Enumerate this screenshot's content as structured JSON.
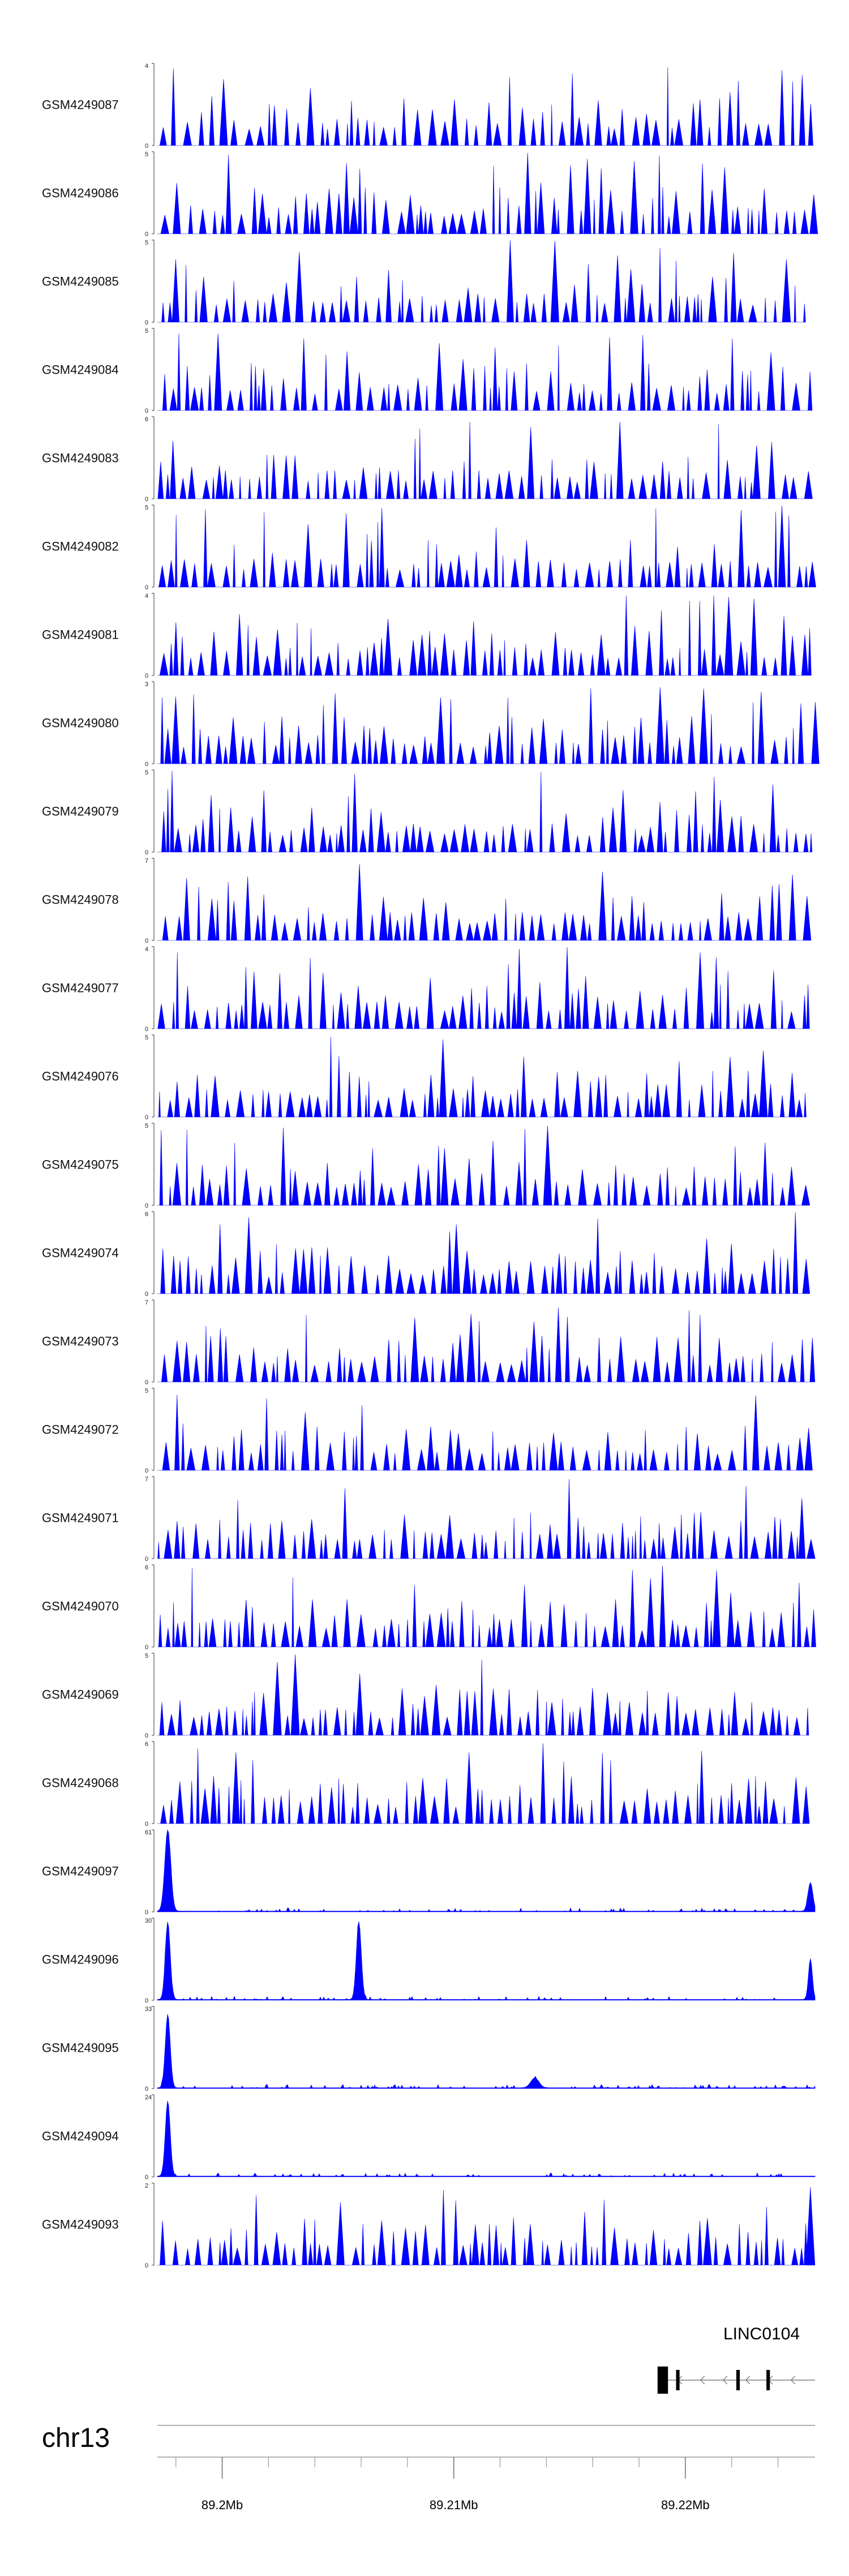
{
  "chart_data": {
    "type": "area",
    "color": "#0000ff",
    "chromosome": "chr13",
    "x_range_mb": [
      89.1972,
      89.2256
    ],
    "axis_ticks": [
      {
        "pos_mb": 89.2,
        "label": "89.2Mb"
      },
      {
        "pos_mb": 89.21,
        "label": "89.21Mb"
      },
      {
        "pos_mb": 89.22,
        "label": "89.22Mb"
      }
    ],
    "gene": {
      "name": "LINC0104",
      "start_mb": 89.2188,
      "end_mb": 89.2256,
      "strand": "-",
      "exons_mb": [
        [
          89.2188,
          89.21925
        ],
        [
          89.2196,
          89.21975
        ],
        [
          89.2222,
          89.22235
        ],
        [
          89.2235,
          89.22365
        ]
      ]
    },
    "tracks": [
      {
        "name": "GSM4249087",
        "ymax": "4",
        "style": "sparse",
        "seed": 87
      },
      {
        "name": "GSM4249086",
        "ymax": "5",
        "style": "sparse",
        "seed": 86
      },
      {
        "name": "GSM4249085",
        "ymax": "5",
        "style": "sparse",
        "seed": 85
      },
      {
        "name": "GSM4249084",
        "ymax": "5",
        "style": "sparse",
        "seed": 84
      },
      {
        "name": "GSM4249083",
        "ymax": "6",
        "style": "sparse",
        "seed": 83
      },
      {
        "name": "GSM4249082",
        "ymax": "5",
        "style": "sparse",
        "seed": 82
      },
      {
        "name": "GSM4249081",
        "ymax": "4",
        "style": "sparse",
        "seed": 81
      },
      {
        "name": "GSM4249080",
        "ymax": "3",
        "style": "sparse",
        "seed": 80
      },
      {
        "name": "GSM4249079",
        "ymax": "5",
        "style": "sparse",
        "seed": 79
      },
      {
        "name": "GSM4249078",
        "ymax": "7",
        "style": "sparse",
        "seed": 78
      },
      {
        "name": "GSM4249077",
        "ymax": "4",
        "style": "sparse",
        "seed": 77
      },
      {
        "name": "GSM4249076",
        "ymax": "5",
        "style": "sparse",
        "seed": 76
      },
      {
        "name": "GSM4249075",
        "ymax": "5",
        "style": "sparse",
        "seed": 75
      },
      {
        "name": "GSM4249074",
        "ymax": "6",
        "style": "sparse",
        "seed": 74
      },
      {
        "name": "GSM4249073",
        "ymax": "7",
        "style": "sparse",
        "seed": 73
      },
      {
        "name": "GSM4249072",
        "ymax": "5",
        "style": "sparse",
        "seed": 72
      },
      {
        "name": "GSM4249071",
        "ymax": "7",
        "style": "sparse",
        "seed": 71
      },
      {
        "name": "GSM4249070",
        "ymax": "6",
        "style": "sparse",
        "seed": 70
      },
      {
        "name": "GSM4249069",
        "ymax": "5",
        "style": "sparse",
        "seed": 69
      },
      {
        "name": "GSM4249068",
        "ymax": "6",
        "style": "sparse",
        "seed": 68
      },
      {
        "name": "GSM4249097",
        "ymax": "61",
        "style": "peaks",
        "seed": 97,
        "peaks": [
          {
            "x": 89.19765,
            "h": 1.0,
            "w": 0.00018
          },
          {
            "x": 89.2254,
            "h": 0.35,
            "w": 0.00015
          }
        ]
      },
      {
        "name": "GSM4249096",
        "ymax": "30",
        "style": "peaks",
        "seed": 96,
        "peaks": [
          {
            "x": 89.19765,
            "h": 0.95,
            "w": 0.00015
          },
          {
            "x": 89.2059,
            "h": 0.95,
            "w": 0.00015
          },
          {
            "x": 89.2254,
            "h": 0.5,
            "w": 0.00012
          }
        ]
      },
      {
        "name": "GSM4249095",
        "ymax": "33",
        "style": "peaks",
        "seed": 95,
        "peaks": [
          {
            "x": 89.19765,
            "h": 0.9,
            "w": 0.00015
          },
          {
            "x": 89.2135,
            "h": 0.12,
            "w": 0.00025
          }
        ]
      },
      {
        "name": "GSM4249094",
        "ymax": "24",
        "style": "peaks",
        "seed": 94,
        "peaks": [
          {
            "x": 89.19765,
            "h": 0.92,
            "w": 0.00015
          }
        ]
      },
      {
        "name": "GSM4249093",
        "ymax": "2",
        "style": "sparse",
        "seed": 93,
        "peaks": [
          {
            "x": 89.2254,
            "h": 0.95,
            "w": 0.00012
          }
        ]
      }
    ]
  }
}
